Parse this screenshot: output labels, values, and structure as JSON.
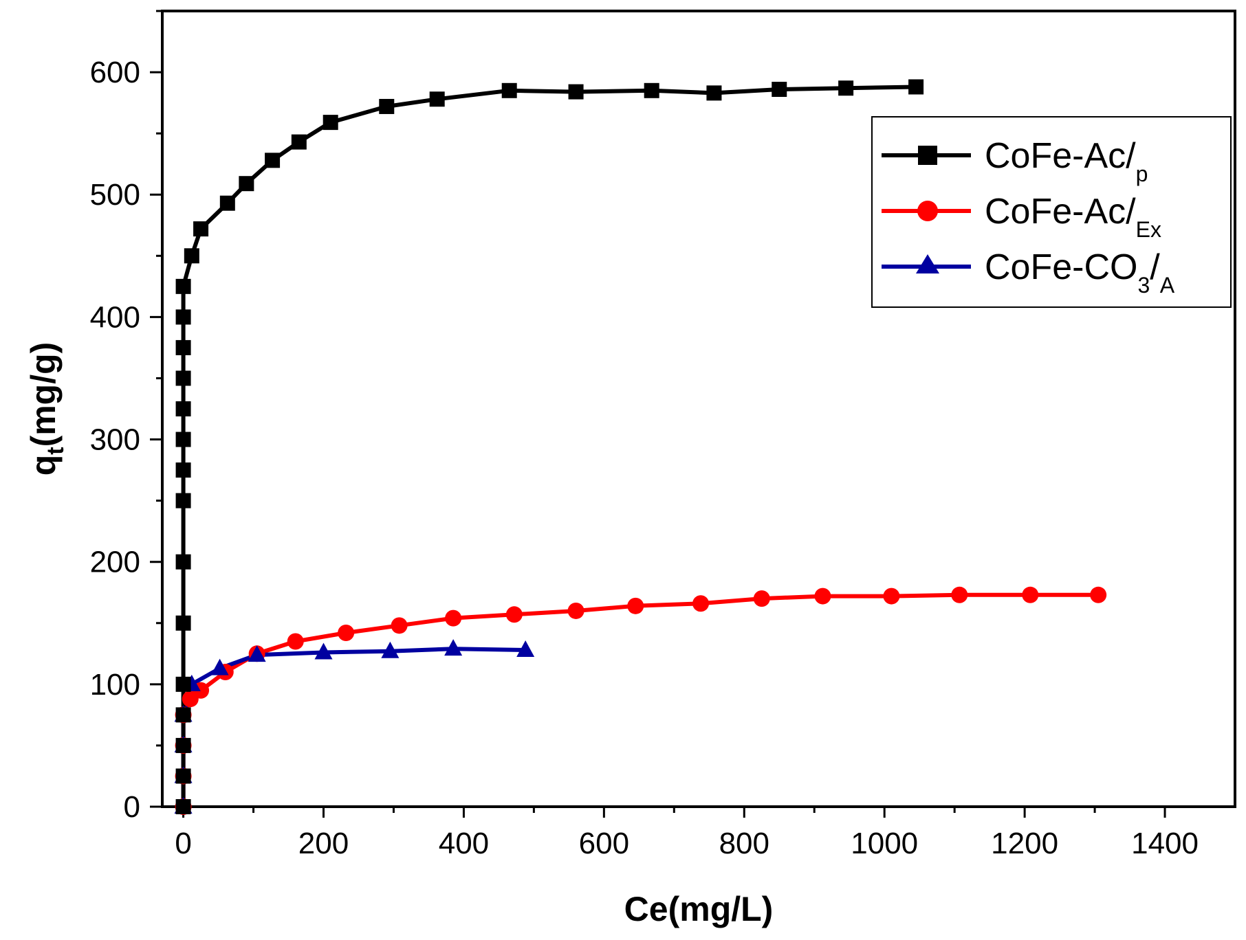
{
  "chart_data": {
    "type": "line",
    "title": "",
    "xlabel": "Ce(mg/L)",
    "ylabel": {
      "main": "q",
      "sub": "t",
      "rest": "(mg/g)"
    },
    "xlim": [
      -30,
      1500
    ],
    "ylim": [
      0,
      650
    ],
    "xticks": [
      0,
      200,
      400,
      600,
      800,
      1000,
      1200,
      1400
    ],
    "yticks": [
      0,
      100,
      200,
      300,
      400,
      500,
      600
    ],
    "grid": false,
    "legend_position": "top-right",
    "series": [
      {
        "name": "CoFe-Ac/p",
        "label_main": "CoFe-Ac/",
        "label_sub": "p",
        "color": "#000000",
        "marker": "square",
        "x": [
          0,
          0,
          0,
          0,
          0,
          0,
          0,
          0,
          0,
          0,
          0,
          0,
          0,
          0,
          0,
          12,
          25,
          63,
          90,
          127,
          165,
          210,
          290,
          362,
          465,
          560,
          668,
          757,
          850,
          945,
          1045
        ],
        "y": [
          0,
          25,
          50,
          75,
          100,
          150,
          200,
          250,
          275,
          300,
          325,
          350,
          375,
          400,
          425,
          450,
          472,
          493,
          509,
          528,
          543,
          559,
          572,
          578,
          585,
          584,
          585,
          583,
          586,
          587,
          588
        ]
      },
      {
        "name": "CoFe-Ac/Ex",
        "label_main": "CoFe-Ac/",
        "label_sub": "Ex",
        "color": "#ff0000",
        "marker": "circle",
        "x": [
          0,
          0,
          0,
          0,
          10,
          25,
          60,
          105,
          160,
          232,
          308,
          385,
          472,
          560,
          645,
          738,
          825,
          912,
          1010,
          1107,
          1208,
          1305
        ],
        "y": [
          0,
          25,
          50,
          75,
          88,
          95,
          110,
          125,
          135,
          142,
          148,
          154,
          157,
          160,
          164,
          166,
          170,
          172,
          172,
          173,
          173,
          173
        ]
      },
      {
        "name": "CoFe-CO3/A",
        "label_main": "CoFe-CO",
        "label_sub": "3",
        "label_tail": "/",
        "label_sub2": "A",
        "color": "#0000a0",
        "marker": "triangle",
        "x": [
          0,
          0,
          0,
          0,
          12,
          52,
          105,
          200,
          295,
          385,
          488
        ],
        "y": [
          0,
          25,
          50,
          75,
          100,
          113,
          124,
          126,
          127,
          129,
          128
        ]
      }
    ]
  }
}
